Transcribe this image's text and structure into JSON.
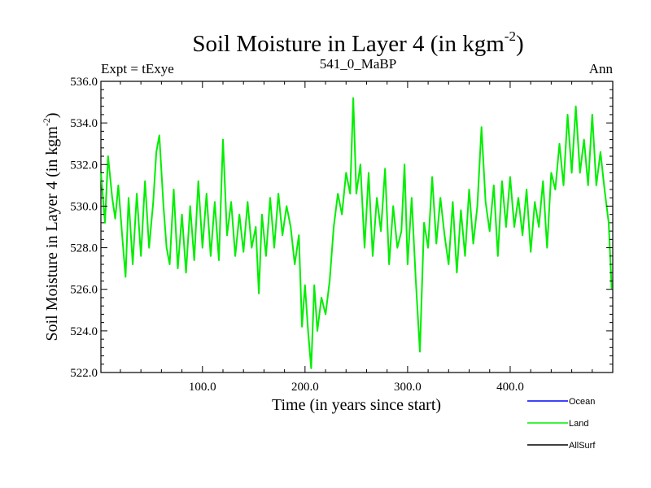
{
  "chart_data": {
    "type": "line",
    "title": "Soil Moisture in Layer 4 (in kgm",
    "title_sup": "-2",
    "title_close": ")",
    "subtitle_left": "Expt = tExye",
    "subtitle_center": "541_0_MaBP",
    "subtitle_right": "Ann",
    "xlabel": "Time (in years since start)",
    "ylabel": "Soil Moisture in Layer 4 (in kgm",
    "ylabel_sup": "-2",
    "ylabel_close": ")",
    "xlim": [
      1,
      500
    ],
    "ylim": [
      522.0,
      536.0
    ],
    "x_ticks": [
      100,
      200,
      300,
      400
    ],
    "x_tick_labels": [
      "100.0",
      "200.0",
      "300.0",
      "400.0"
    ],
    "y_ticks": [
      522,
      524,
      526,
      528,
      530,
      532,
      534,
      536
    ],
    "y_tick_labels": [
      "522.0",
      "524.0",
      "526.0",
      "528.0",
      "530.0",
      "532.0",
      "534.0",
      "536.0"
    ],
    "legend_placement": "bottom-right, outside",
    "legend": [
      {
        "name": "Ocean",
        "color": "#0000ff"
      },
      {
        "name": "Land",
        "color": "#00ee00"
      },
      {
        "name": "AllSurf",
        "color": "#000000"
      }
    ],
    "series": [
      {
        "name": "Land",
        "color": "#00ee00",
        "points": [
          [
            1,
            531.6
          ],
          [
            5,
            529.2
          ],
          [
            8,
            532.4
          ],
          [
            12,
            530.4
          ],
          [
            15,
            529.4
          ],
          [
            18,
            531.0
          ],
          [
            22,
            528.4
          ],
          [
            25,
            526.6
          ],
          [
            28,
            530.4
          ],
          [
            32,
            527.2
          ],
          [
            36,
            530.6
          ],
          [
            40,
            527.6
          ],
          [
            44,
            531.2
          ],
          [
            48,
            528.0
          ],
          [
            52,
            530.2
          ],
          [
            55,
            532.6
          ],
          [
            58,
            533.4
          ],
          [
            62,
            530.0
          ],
          [
            65,
            528.0
          ],
          [
            68,
            527.2
          ],
          [
            72,
            530.8
          ],
          [
            76,
            527.0
          ],
          [
            80,
            529.6
          ],
          [
            84,
            526.8
          ],
          [
            88,
            530.0
          ],
          [
            92,
            527.4
          ],
          [
            96,
            531.2
          ],
          [
            100,
            528.0
          ],
          [
            104,
            530.6
          ],
          [
            108,
            527.6
          ],
          [
            112,
            530.2
          ],
          [
            116,
            527.4
          ],
          [
            120,
            533.2
          ],
          [
            124,
            528.6
          ],
          [
            128,
            530.2
          ],
          [
            132,
            527.6
          ],
          [
            136,
            529.6
          ],
          [
            140,
            527.8
          ],
          [
            144,
            530.2
          ],
          [
            148,
            528.0
          ],
          [
            152,
            529.0
          ],
          [
            155,
            525.8
          ],
          [
            158,
            529.6
          ],
          [
            162,
            527.6
          ],
          [
            166,
            530.4
          ],
          [
            170,
            528.0
          ],
          [
            174,
            530.6
          ],
          [
            178,
            528.6
          ],
          [
            182,
            530.0
          ],
          [
            186,
            529.0
          ],
          [
            190,
            527.2
          ],
          [
            194,
            528.6
          ],
          [
            197,
            524.2
          ],
          [
            200,
            526.2
          ],
          [
            203,
            524.0
          ],
          [
            206,
            522.2
          ],
          [
            209,
            526.2
          ],
          [
            212,
            524.0
          ],
          [
            216,
            525.6
          ],
          [
            220,
            524.8
          ],
          [
            224,
            526.4
          ],
          [
            228,
            529.0
          ],
          [
            232,
            530.6
          ],
          [
            236,
            529.6
          ],
          [
            240,
            531.6
          ],
          [
            244,
            530.6
          ],
          [
            247,
            535.2
          ],
          [
            250,
            530.6
          ],
          [
            254,
            532.0
          ],
          [
            258,
            528.0
          ],
          [
            262,
            531.6
          ],
          [
            266,
            527.6
          ],
          [
            270,
            530.4
          ],
          [
            274,
            528.8
          ],
          [
            278,
            531.8
          ],
          [
            282,
            527.2
          ],
          [
            286,
            530.0
          ],
          [
            290,
            528.0
          ],
          [
            294,
            528.8
          ],
          [
            297,
            532.0
          ],
          [
            300,
            527.2
          ],
          [
            304,
            530.4
          ],
          [
            308,
            526.4
          ],
          [
            312,
            523.0
          ],
          [
            316,
            529.2
          ],
          [
            320,
            528.0
          ],
          [
            324,
            531.4
          ],
          [
            328,
            528.2
          ],
          [
            332,
            530.4
          ],
          [
            336,
            528.6
          ],
          [
            340,
            527.2
          ],
          [
            344,
            530.2
          ],
          [
            348,
            526.8
          ],
          [
            352,
            529.8
          ],
          [
            356,
            527.6
          ],
          [
            360,
            530.8
          ],
          [
            364,
            528.2
          ],
          [
            368,
            530.0
          ],
          [
            372,
            533.8
          ],
          [
            376,
            530.2
          ],
          [
            380,
            528.8
          ],
          [
            384,
            531.0
          ],
          [
            388,
            527.6
          ],
          [
            392,
            531.2
          ],
          [
            396,
            529.0
          ],
          [
            400,
            531.4
          ],
          [
            404,
            529.0
          ],
          [
            408,
            530.4
          ],
          [
            412,
            528.6
          ],
          [
            416,
            530.8
          ],
          [
            420,
            527.8
          ],
          [
            424,
            530.2
          ],
          [
            428,
            529.0
          ],
          [
            432,
            531.2
          ],
          [
            436,
            528.0
          ],
          [
            440,
            531.6
          ],
          [
            444,
            530.8
          ],
          [
            448,
            533.0
          ],
          [
            452,
            531.0
          ],
          [
            456,
            534.4
          ],
          [
            460,
            531.6
          ],
          [
            464,
            534.8
          ],
          [
            468,
            531.6
          ],
          [
            472,
            533.2
          ],
          [
            476,
            531.0
          ],
          [
            480,
            534.4
          ],
          [
            484,
            531.0
          ],
          [
            488,
            532.6
          ],
          [
            492,
            530.8
          ],
          [
            496,
            529.2
          ],
          [
            499,
            526.0
          ]
        ]
      }
    ]
  }
}
